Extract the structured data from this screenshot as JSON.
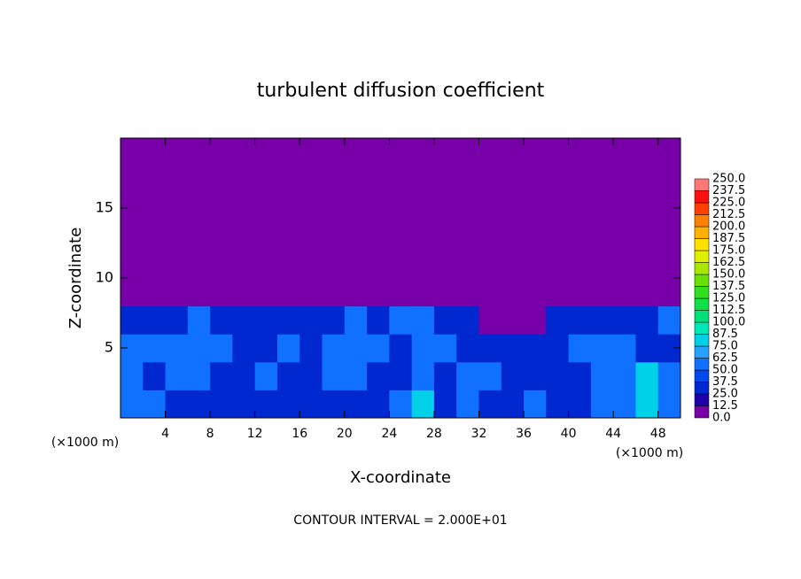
{
  "chart_data": {
    "type": "heatmap",
    "title": "turbulent diffusion coefficient",
    "x_label": "X-coordinate",
    "y_label": "Z-coordinate",
    "x_unit_left": "(×1000 m)",
    "x_unit_right": "(×1000 m)",
    "footer": "CONTOUR INTERVAL = 2.000E+01",
    "xlim": [
      0,
      50
    ],
    "ylim": [
      0,
      20
    ],
    "xticks": [
      4,
      8,
      12,
      16,
      20,
      24,
      28,
      32,
      36,
      40,
      44,
      48
    ],
    "yticks": [
      5,
      10,
      15
    ],
    "x": [
      1,
      3,
      5,
      7,
      9,
      11,
      13,
      15,
      17,
      19,
      21,
      23,
      25,
      27,
      29,
      31,
      33,
      35,
      37,
      39,
      41,
      43,
      45,
      47,
      49
    ],
    "y": [
      1,
      3,
      5,
      7,
      9,
      11,
      13,
      15,
      17,
      19
    ],
    "z": [
      [
        50,
        62,
        37,
        37,
        25,
        37,
        37,
        25,
        25,
        37,
        37,
        37,
        50,
        87,
        37,
        50,
        37,
        37,
        50,
        37,
        37,
        50,
        62,
        75,
        50
      ],
      [
        62,
        37,
        62,
        50,
        37,
        37,
        50,
        37,
        37,
        50,
        62,
        37,
        37,
        62,
        37,
        50,
        50,
        37,
        37,
        25,
        37,
        50,
        62,
        75,
        50
      ],
      [
        50,
        62,
        50,
        62,
        50,
        37,
        37,
        62,
        37,
        50,
        50,
        50,
        37,
        62,
        50,
        37,
        37,
        25,
        25,
        37,
        50,
        62,
        50,
        37,
        37
      ],
      [
        37,
        37,
        37,
        50,
        37,
        37,
        25,
        25,
        37,
        37,
        50,
        37,
        50,
        50,
        37,
        25,
        12,
        12,
        12,
        37,
        37,
        37,
        37,
        37,
        50
      ],
      [
        0,
        0,
        0,
        0,
        0,
        0,
        0,
        0,
        0,
        0,
        0,
        0,
        12,
        0,
        0,
        0,
        0,
        0,
        0,
        0,
        0,
        0,
        0,
        0,
        0
      ],
      [
        0,
        0,
        0,
        0,
        0,
        0,
        0,
        0,
        0,
        0,
        0,
        0,
        0,
        0,
        0,
        0,
        0,
        0,
        0,
        0,
        0,
        0,
        0,
        0,
        0
      ],
      [
        0,
        0,
        0,
        0,
        0,
        0,
        0,
        0,
        0,
        0,
        0,
        0,
        0,
        0,
        0,
        0,
        0,
        0,
        0,
        0,
        0,
        0,
        0,
        0,
        0
      ],
      [
        0,
        0,
        0,
        0,
        0,
        0,
        0,
        0,
        0,
        0,
        0,
        0,
        0,
        0,
        0,
        0,
        0,
        0,
        0,
        0,
        0,
        0,
        0,
        0,
        0
      ],
      [
        0,
        0,
        0,
        0,
        0,
        0,
        0,
        0,
        0,
        0,
        0,
        0,
        0,
        0,
        0,
        0,
        0,
        0,
        0,
        0,
        0,
        0,
        0,
        0,
        0
      ],
      [
        0,
        0,
        0,
        0,
        0,
        0,
        0,
        0,
        0,
        0,
        0,
        0,
        0,
        0,
        0,
        0,
        0,
        0,
        0,
        0,
        0,
        0,
        0,
        0,
        0
      ]
    ],
    "colorbar": {
      "ticks": [
        {
          "value": 0,
          "label": "0.0"
        },
        12.5,
        {
          "value": 25,
          "label": "25.0"
        },
        37.5,
        {
          "value": 50,
          "label": "50.0"
        },
        62.5,
        {
          "value": 75,
          "label": "75.0"
        },
        87.5,
        {
          "value": 100,
          "label": "100.0"
        },
        112.5,
        {
          "value": 125,
          "label": "125.0"
        },
        137.5,
        {
          "value": 150,
          "label": "150.0"
        },
        162.5,
        {
          "value": 175,
          "label": "175.0"
        },
        187.5,
        {
          "value": 200,
          "label": "200.0"
        },
        212.5,
        {
          "value": 225,
          "label": "225.0"
        },
        237.5,
        {
          "value": 250,
          "label": "250.0"
        }
      ],
      "colors": [
        "#7800a8",
        "#2000a8",
        "#0028d0",
        "#0048f0",
        "#1070ff",
        "#28a0ff",
        "#00d0e8",
        "#00e8b8",
        "#00e078",
        "#10e048",
        "#30e020",
        "#68e000",
        "#a8e800",
        "#e0f000",
        "#ffe000",
        "#ffb000",
        "#ff8000",
        "#ff4000",
        "#ff1010",
        "#ff7878"
      ]
    }
  }
}
